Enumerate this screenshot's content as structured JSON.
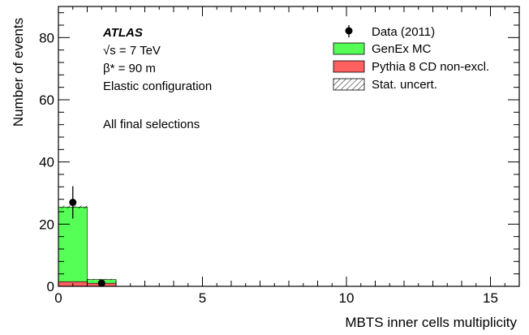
{
  "chart_data": {
    "type": "bar",
    "xlabel": "MBTS inner cells multiplicity",
    "ylabel": "Number of events",
    "xlim": [
      0,
      16
    ],
    "ylim": [
      0,
      90
    ],
    "x_ticks": [
      0,
      5,
      10,
      15
    ],
    "y_ticks": [
      0,
      20,
      40,
      60,
      80
    ],
    "bin_edges": [
      0,
      1,
      2,
      3,
      4,
      5,
      6,
      7,
      8,
      9,
      10,
      11,
      12,
      13,
      14,
      15,
      16
    ],
    "stack_order": "Pythia 8 CD non-excl. below GenEx MC",
    "series": [
      {
        "name": "Pythia 8 CD non-excl.",
        "kind": "stacked-histogram",
        "color": "#ff6060",
        "values": [
          1.5,
          1.0,
          0,
          0,
          0,
          0,
          0,
          0,
          0,
          0,
          0,
          0,
          0,
          0,
          0,
          0
        ]
      },
      {
        "name": "GenEx MC",
        "kind": "stacked-histogram",
        "color": "#55ff55",
        "values": [
          24.0,
          1.2,
          0,
          0,
          0,
          0,
          0,
          0,
          0,
          0,
          0,
          0,
          0,
          0,
          0,
          0
        ]
      },
      {
        "name": "Data (2011)",
        "kind": "points-with-errors",
        "color": "#000000",
        "points": [
          {
            "x": 0.5,
            "y": 27,
            "err": 5.2
          },
          {
            "x": 1.5,
            "y": 1,
            "err": 1.0
          }
        ]
      }
    ],
    "stat_uncert": [
      {
        "bin": [
          0,
          1
        ],
        "low": 25.0,
        "high": 26.0
      },
      {
        "bin": [
          1,
          2
        ],
        "low": 2.0,
        "high": 2.4
      }
    ],
    "annotations": {
      "experiment": "ATLAS",
      "energy": "√s = 7 TeV",
      "beta": "β* = 90 m",
      "config": "Elastic configuration",
      "selection": "All final selections"
    },
    "legend": {
      "placement": "top-right",
      "entries": [
        "Data (2011)",
        "GenEx MC",
        "Pythia 8 CD non-excl.",
        "Stat. uncert."
      ]
    },
    "grid": false
  }
}
